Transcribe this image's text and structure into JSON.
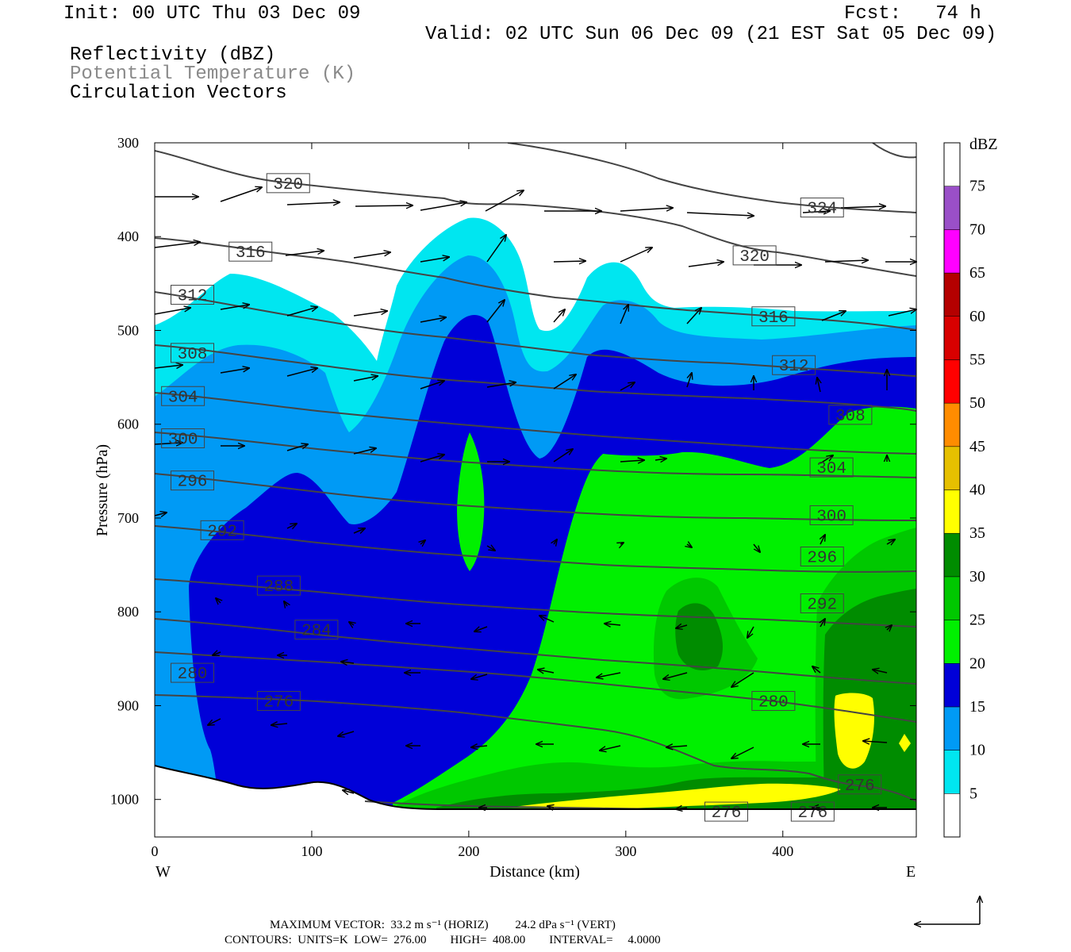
{
  "header": {
    "init": "Init: 00 UTC Thu 03 Dec 09",
    "fcst": "Fcst:   74 h",
    "valid": "Valid: 02 UTC Sun 06 Dec 09 (21 EST Sat 05 Dec 09)",
    "fields": [
      "Reflectivity (dBZ)",
      "Potential Temperature (K)",
      "Circulation Vectors"
    ]
  },
  "footer": {
    "max_vector": "MAXIMUM VECTOR:  33.2 m s⁻¹ (HORIZ)         24.2 dPa s⁻¹ (VERT)",
    "contours": "CONTOURS:  UNITS=K  LOW=  276.00        HIGH=  408.00        INTERVAL=     4.0000"
  },
  "colors": {
    "dbz5": "#00e6f0",
    "dbz10": "#009af5",
    "dbz15": "#0000d8",
    "dbz20": "#00f000",
    "dbz25": "#00c800",
    "dbz30": "#008c00",
    "dbz35": "#ffff00",
    "contour": "#444444"
  },
  "chart_data": {
    "type": "heatmap",
    "title": "",
    "xlabel": "Distance (km)",
    "ylabel": "Pressure (hPa)",
    "xlim": [
      0,
      485
    ],
    "ylim": [
      1040,
      300
    ],
    "x_ticks": [
      0,
      100,
      200,
      300,
      400
    ],
    "y_ticks": [
      300,
      400,
      500,
      600,
      700,
      800,
      900,
      1000
    ],
    "x_end_labels": {
      "left": "W",
      "right": "E"
    },
    "colorbar": {
      "label": "dBZ",
      "levels": [
        5,
        10,
        15,
        20,
        25,
        30,
        35,
        40,
        45,
        50,
        55,
        60,
        65,
        70,
        75
      ],
      "colors": [
        "#ffffff",
        "#00e6f0",
        "#009af5",
        "#0000d8",
        "#00f000",
        "#00c800",
        "#008c00",
        "#ffff00",
        "#e6c000",
        "#ff8c00",
        "#ff0000",
        "#d80000",
        "#b40000",
        "#ff00ff",
        "#9a4fc8",
        "#ffffff"
      ]
    },
    "theta_contour_labels": [
      {
        "value": 320,
        "x": 85,
        "p": 343
      },
      {
        "value": 324,
        "x": 425,
        "p": 369
      },
      {
        "value": 316,
        "x": 61,
        "p": 416
      },
      {
        "value": 320,
        "x": 382,
        "p": 420
      },
      {
        "value": 312,
        "x": 24,
        "p": 462
      },
      {
        "value": 316,
        "x": 394,
        "p": 485
      },
      {
        "value": 308,
        "x": 24,
        "p": 524
      },
      {
        "value": 312,
        "x": 407,
        "p": 537
      },
      {
        "value": 304,
        "x": 18,
        "p": 570
      },
      {
        "value": 308,
        "x": 443,
        "p": 590
      },
      {
        "value": 300,
        "x": 18,
        "p": 615
      },
      {
        "value": 304,
        "x": 431,
        "p": 646
      },
      {
        "value": 296,
        "x": 24,
        "p": 660
      },
      {
        "value": 300,
        "x": 431,
        "p": 697
      },
      {
        "value": 292,
        "x": 43,
        "p": 713
      },
      {
        "value": 296,
        "x": 425,
        "p": 741
      },
      {
        "value": 288,
        "x": 79,
        "p": 772
      },
      {
        "value": 292,
        "x": 425,
        "p": 791
      },
      {
        "value": 284,
        "x": 103,
        "p": 819
      },
      {
        "value": 280,
        "x": 24,
        "p": 865
      },
      {
        "value": 276,
        "x": 79,
        "p": 895
      },
      {
        "value": 280,
        "x": 394,
        "p": 895
      },
      {
        "value": 276,
        "x": 449,
        "p": 984
      },
      {
        "value": 276,
        "x": 364,
        "p": 1013
      },
      {
        "value": 276,
        "x": 419,
        "p": 1013
      }
    ],
    "theta_range": {
      "low": 276.0,
      "high": 408.0,
      "interval": 4.0,
      "units": "K"
    },
    "max_vector": {
      "horiz": 33.2,
      "horiz_units": "m s-1",
      "vert": 24.2,
      "vert_units": "dPa s-1"
    }
  }
}
